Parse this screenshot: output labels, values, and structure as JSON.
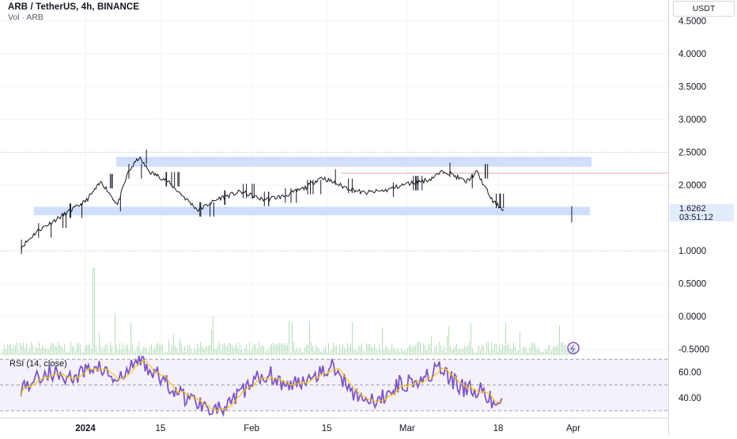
{
  "header": {
    "symbol_line": "ARB / TetherUS, 4h, BINANCE",
    "volume_line": "Vol · ARB"
  },
  "currency_button": "USDT",
  "last_price": {
    "value": "1.6262",
    "countdown": "03:51:12"
  },
  "rsi_label": "RSI (14, close)",
  "colors": {
    "price_line": "#131722",
    "zone": "#c9d8fb",
    "rsi_line": "#7e57c2",
    "rsi_ma": "#f5c518",
    "volume": "#a5d6a7",
    "resistance_line": "#e0a8a8"
  },
  "chart_data": [
    {
      "type": "line",
      "title": "ARB / TetherUS, 4h, BINANCE",
      "y_ticks": [
        "4.5000",
        "4.0000",
        "3.5000",
        "3.0000",
        "2.5000",
        "2.0000",
        "1.0000",
        "0.5000",
        "0.0000",
        "-0.5000"
      ],
      "x_ticks": [
        "2024",
        "15",
        "Feb",
        "15",
        "Mar",
        "18",
        "Apr"
      ],
      "ylim": [
        -0.6,
        4.6
      ],
      "series": [
        {
          "x": [
            "2023-12-20",
            "2023-12-23",
            "2023-12-26",
            "2023-12-29",
            "2024-01-01",
            "2024-01-04",
            "2024-01-07",
            "2024-01-09",
            "2024-01-11",
            "2024-01-13",
            "2024-01-16",
            "2024-01-19",
            "2024-01-22",
            "2024-01-26",
            "2024-01-30",
            "2024-02-03",
            "2024-02-07",
            "2024-02-11",
            "2024-02-14",
            "2024-02-18",
            "2024-02-22",
            "2024-02-26",
            "2024-03-01",
            "2024-03-05",
            "2024-03-08",
            "2024-03-12",
            "2024-03-14",
            "2024-03-17",
            "2024-03-19"
          ],
          "values": [
            1.05,
            1.3,
            1.45,
            1.6,
            1.75,
            2.05,
            1.7,
            2.2,
            2.42,
            2.2,
            2.08,
            1.85,
            1.62,
            1.8,
            1.9,
            1.78,
            1.83,
            1.96,
            2.12,
            1.98,
            1.88,
            1.92,
            2.02,
            2.08,
            2.22,
            2.05,
            2.2,
            1.75,
            1.6262
          ]
        }
      ],
      "annotations": {
        "supply_zone": [
          2.28,
          2.43
        ],
        "demand_zone": [
          1.54,
          1.67
        ],
        "resistance_line": 2.18
      }
    },
    {
      "type": "line",
      "title": "RSI (14, close)",
      "y_ticks": [
        "60.00",
        "40.00"
      ],
      "band": [
        30,
        70
      ],
      "ylim": [
        25,
        75
      ],
      "series": [
        {
          "x": [
            "2023-12-20",
            "2023-12-25",
            "2023-12-30",
            "2024-01-03",
            "2024-01-07",
            "2024-01-11",
            "2024-01-15",
            "2024-01-19",
            "2024-01-23",
            "2024-01-27",
            "2024-01-31",
            "2024-02-04",
            "2024-02-08",
            "2024-02-12",
            "2024-02-16",
            "2024-02-20",
            "2024-02-24",
            "2024-02-28",
            "2024-03-03",
            "2024-03-07",
            "2024-03-11",
            "2024-03-15",
            "2024-03-18",
            "2024-03-19"
          ],
          "values": [
            48,
            60,
            55,
            66,
            52,
            70,
            55,
            42,
            35,
            30,
            48,
            60,
            48,
            58,
            64,
            45,
            35,
            50,
            55,
            62,
            48,
            45,
            32,
            38
          ]
        }
      ]
    }
  ]
}
